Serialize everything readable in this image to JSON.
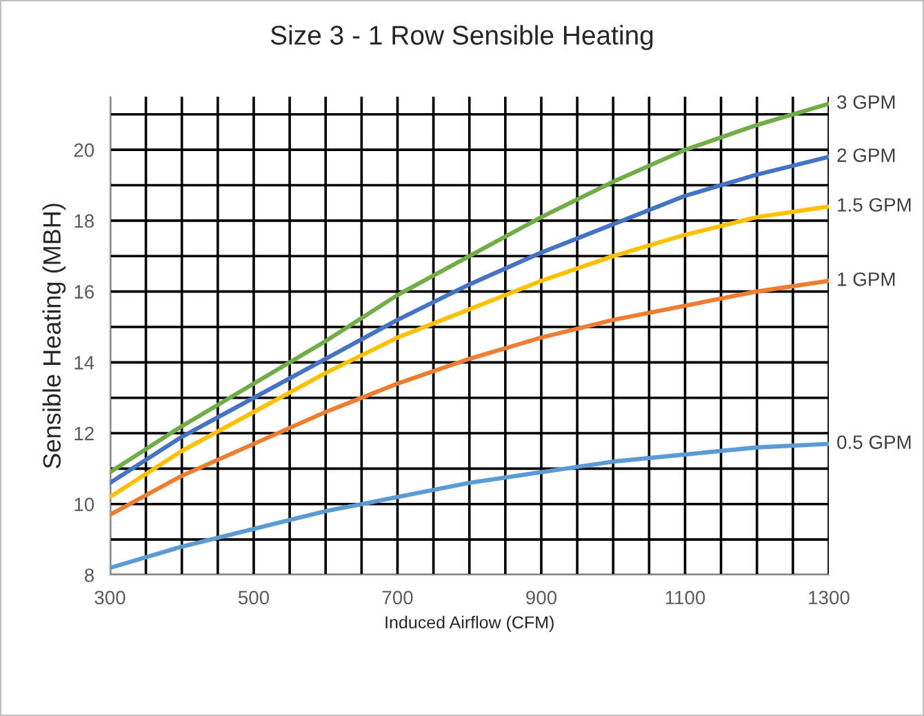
{
  "chart_data": {
    "type": "line",
    "title": "Size 3 - 1 Row Sensible Heating",
    "xlabel": "Induced Airflow (CFM)",
    "ylabel": "Sensible Heating (MBH)",
    "x": [
      300,
      400,
      500,
      600,
      700,
      800,
      900,
      1000,
      1100,
      1200,
      1300
    ],
    "series": [
      {
        "name": "3 GPM",
        "color": "#70ad47",
        "values": [
          10.9,
          12.2,
          13.4,
          14.6,
          15.9,
          17.0,
          18.1,
          19.1,
          20.0,
          20.7,
          21.3
        ]
      },
      {
        "name": "2 GPM",
        "color": "#4472c4",
        "values": [
          10.6,
          11.9,
          13.0,
          14.1,
          15.2,
          16.2,
          17.1,
          17.9,
          18.7,
          19.3,
          19.8
        ]
      },
      {
        "name": "1.5 GPM",
        "color": "#ffc000",
        "values": [
          10.2,
          11.5,
          12.6,
          13.7,
          14.7,
          15.5,
          16.3,
          17.0,
          17.6,
          18.1,
          18.4
        ]
      },
      {
        "name": "1 GPM",
        "color": "#ed7d31",
        "values": [
          9.7,
          10.8,
          11.7,
          12.6,
          13.4,
          14.1,
          14.7,
          15.2,
          15.6,
          16.0,
          16.3
        ]
      },
      {
        "name": "0.5 GPM",
        "color": "#5b9bd5",
        "values": [
          8.2,
          8.8,
          9.3,
          9.8,
          10.2,
          10.6,
          10.9,
          11.2,
          11.4,
          11.6,
          11.7
        ]
      }
    ],
    "xlim": [
      300,
      1300
    ],
    "ylim": [
      8,
      21.5
    ],
    "xticks": [
      300,
      {
        "value": 350,
        "label": null
      },
      {
        "value": 400,
        "label": null
      },
      {
        "value": 450,
        "label": null
      },
      500,
      {
        "value": 550,
        "label": null
      },
      {
        "value": 600,
        "label": null
      },
      {
        "value": 650,
        "label": null
      },
      700,
      {
        "value": 750,
        "label": null
      },
      {
        "value": 800,
        "label": null
      },
      {
        "value": 850,
        "label": null
      },
      900,
      {
        "value": 950,
        "label": null
      },
      {
        "value": 1000,
        "label": null
      },
      {
        "value": 1050,
        "label": null
      },
      1100,
      {
        "value": 1150,
        "label": null
      },
      {
        "value": 1200,
        "label": null
      },
      {
        "value": 1250,
        "label": null
      },
      1300
    ],
    "yticks": [
      8,
      {
        "value": 9,
        "label": null
      },
      10,
      {
        "value": 11,
        "label": null
      },
      12,
      {
        "value": 13,
        "label": null
      },
      14,
      {
        "value": 15,
        "label": null
      },
      16,
      {
        "value": 17,
        "label": null
      },
      18,
      {
        "value": 19,
        "label": null
      },
      20,
      {
        "value": 21,
        "label": null
      }
    ],
    "grid": true,
    "legend": false,
    "marker": "none",
    "line_style": "solid"
  }
}
